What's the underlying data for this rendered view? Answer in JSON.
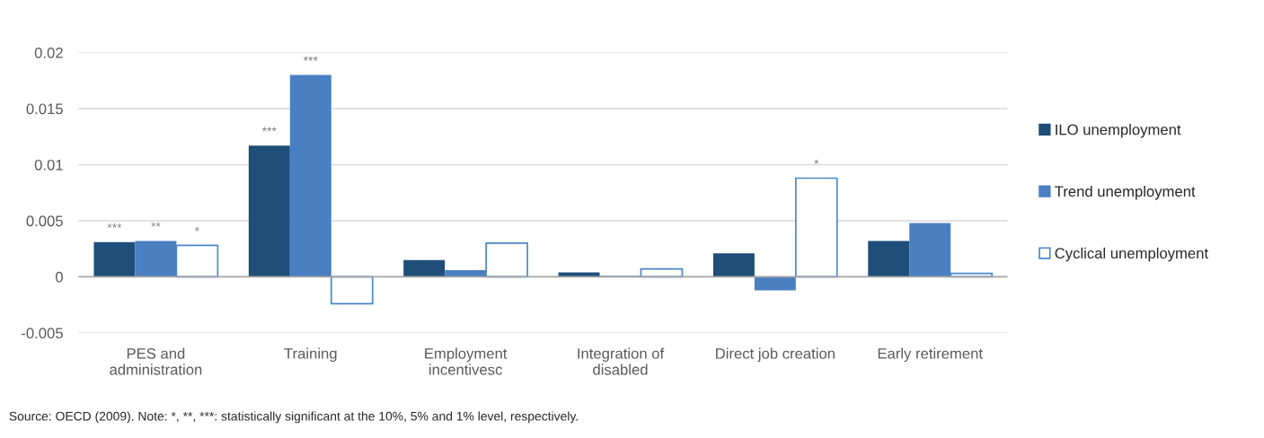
{
  "chart_data": {
    "type": "bar",
    "categories": [
      "PES and\nadministration",
      "Training",
      "Employment\nincentivesc",
      "Integration of\ndisabled",
      "Direct job creation",
      "Early retirement"
    ],
    "series": [
      {
        "name": "ILO unemployment",
        "color": "#1f4e79",
        "values": [
          0.0031,
          0.0117,
          0.0015,
          0.0004,
          0.0021,
          0.0032
        ],
        "value_labels": [
          "***",
          "***",
          null,
          null,
          null,
          null
        ]
      },
      {
        "name": "Trend unemployment",
        "color": "#4a7fc1",
        "values": [
          0.0032,
          0.018,
          0.0006,
          0.0001,
          -0.0012,
          0.0048
        ],
        "value_labels": [
          "**",
          "***",
          null,
          null,
          null,
          null
        ]
      },
      {
        "name": "Cyclical unemployment",
        "color": "#ffffff",
        "values": [
          0.0028,
          -0.0024,
          0.003,
          0.0007,
          0.0088,
          0.0003
        ],
        "value_labels": [
          "*",
          null,
          null,
          null,
          "*",
          null
        ]
      }
    ],
    "ylim": [
      -0.005,
      0.02
    ],
    "yticks": [
      {
        "value": -0.005,
        "label": "-0.005"
      },
      0,
      0.005,
      0.01,
      0.015,
      0.02
    ],
    "grid": "y",
    "legend": "right",
    "annotations": [
      "Source: OECD (2009). Note: *, **, ***: statistically significant at the 10%, 5% and 1% level, respectively."
    ]
  }
}
